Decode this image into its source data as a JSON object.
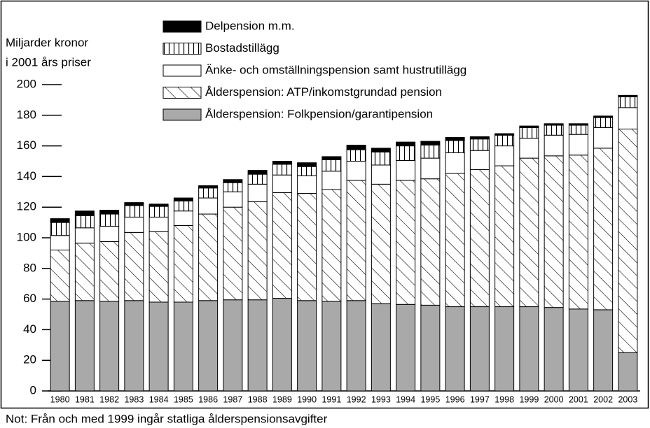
{
  "chart_data": {
    "type": "stacked_bar",
    "y_axis_label": [
      "Miljarder kronor",
      "i 2001 års priser"
    ],
    "note": "Not: Från och med 1999 ingår statliga ålderspensionsavgifter",
    "categories": [
      "1980",
      "1981",
      "1982",
      "1983",
      "1984",
      "1985",
      "1986",
      "1987",
      "1988",
      "1989",
      "1990",
      "1991",
      "1992",
      "1993",
      "1994",
      "1995",
      "1996",
      "1997",
      "1998",
      "1999",
      "2000",
      "2001",
      "2002",
      "2003"
    ],
    "ylim": [
      0,
      200
    ],
    "yticks": [
      0,
      20,
      40,
      60,
      80,
      100,
      120,
      140,
      160,
      180,
      200
    ],
    "series": [
      {
        "name": "Ålderspension: Folkpension/garantipension",
        "color": "#a9a9a9",
        "pattern": "solid",
        "values": [
          58.5,
          59,
          58.5,
          59,
          58,
          58,
          59,
          59.5,
          59.5,
          60.5,
          59,
          58.5,
          59,
          57,
          56.5,
          56,
          55,
          55,
          55,
          55,
          54.5,
          53.5,
          53,
          25
        ]
      },
      {
        "name": "Ålderspension: ATP/inkomstgrundad pension",
        "color": "#000000",
        "pattern": "diagonal",
        "values": [
          33.5,
          37.5,
          39,
          44.5,
          46,
          50,
          56.5,
          60.5,
          64,
          69,
          70,
          73,
          78.5,
          78,
          81,
          82.5,
          87,
          89.5,
          92,
          97,
          99,
          100.5,
          105.5,
          146
        ]
      },
      {
        "name": "Änke- och omställningspension samt hustrutillägg",
        "color": "#ffffff",
        "pattern": "solid",
        "values": [
          9.5,
          10,
          10,
          10,
          9.5,
          9.5,
          10.5,
          10,
          11.5,
          11.5,
          11.5,
          12,
          12.5,
          12.5,
          13,
          13.5,
          13.5,
          12.5,
          13,
          13,
          13.5,
          13.5,
          13.5,
          14
        ]
      },
      {
        "name": "Bostadstillägg",
        "color": "#000000",
        "pattern": "vertical",
        "values": [
          8.5,
          8,
          8,
          7.5,
          7,
          6.5,
          6.5,
          6,
          6.5,
          7,
          6,
          7.5,
          7.5,
          8.5,
          9.5,
          8.5,
          8,
          7.5,
          7,
          7,
          6.5,
          6,
          6.5,
          7
        ]
      },
      {
        "name": "Delpension m.m.",
        "color": "#000000",
        "pattern": "solid",
        "values": [
          2.5,
          3,
          2.5,
          2,
          1.5,
          2,
          1.5,
          2,
          2.5,
          2,
          2.5,
          2,
          3,
          2.5,
          2.5,
          2.5,
          2,
          1.5,
          1,
          1,
          1,
          1,
          1,
          1
        ]
      }
    ]
  }
}
